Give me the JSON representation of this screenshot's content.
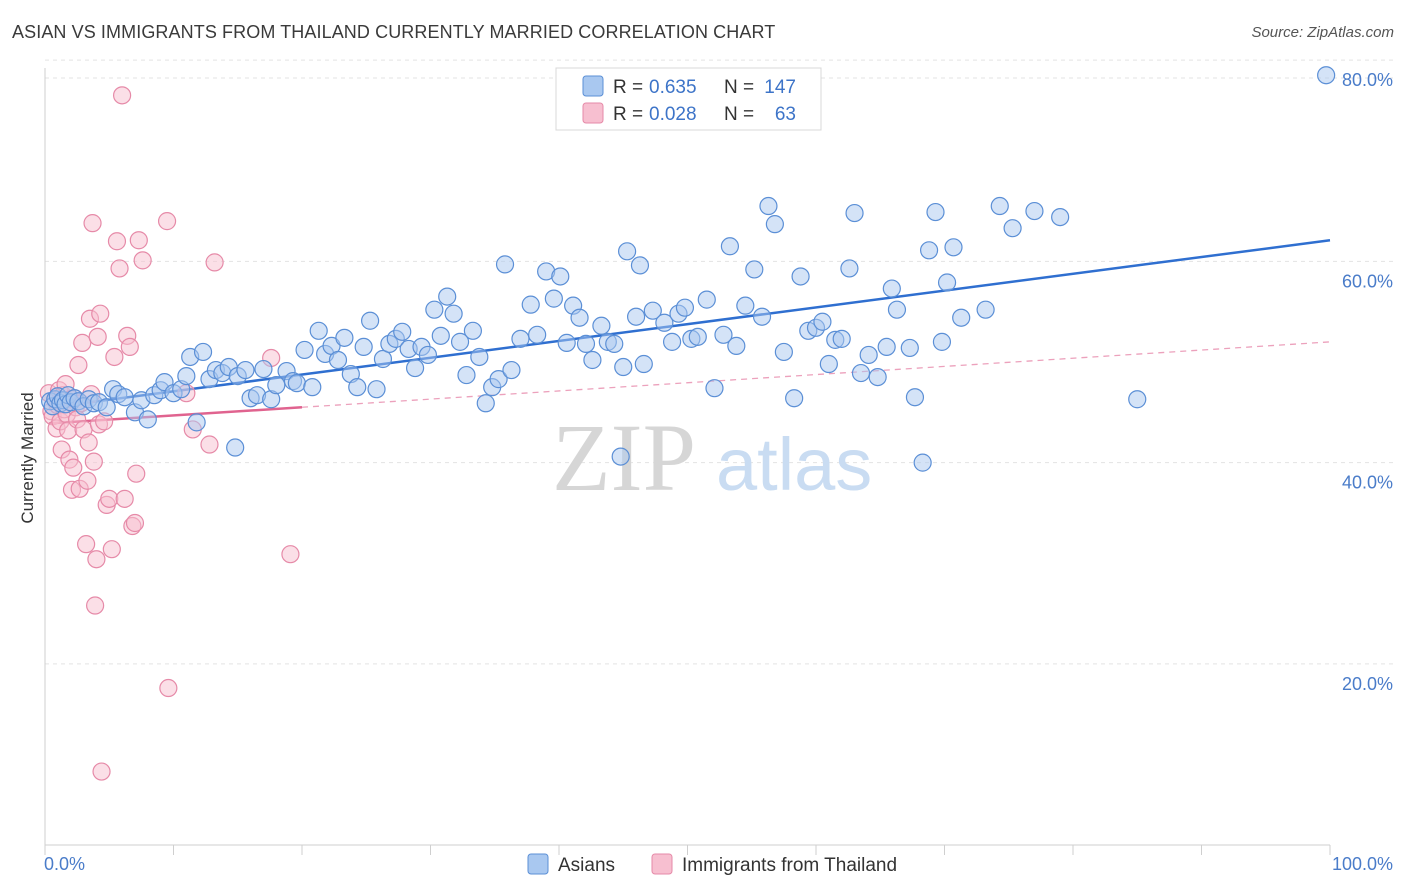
{
  "title": "ASIAN VS IMMIGRANTS FROM THAILAND CURRENTLY MARRIED CORRELATION CHART",
  "source": "Source: ZipAtlas.com",
  "watermark": {
    "zip": "ZIP",
    "atlas": "atlas"
  },
  "colors": {
    "asian_fill": "#a9c8f0",
    "asian_stroke": "#5b8fd6",
    "asian_line": "#2f6fd0",
    "thai_fill": "#f7bfd0",
    "thai_stroke": "#e68aa8",
    "thai_line": "#e0638f",
    "grid": "#e3e3e3",
    "tick_text": "#4a7cc9"
  },
  "legend_top": {
    "rows": [
      {
        "r_label": "R =",
        "r_value": "0.635",
        "n_label": "N =",
        "n_value": "147"
      },
      {
        "r_label": "R =",
        "r_value": "0.028",
        "n_label": "N =",
        "n_value": "63"
      }
    ]
  },
  "legend_bottom": {
    "items": [
      "Asians",
      "Immigrants from Thailand"
    ]
  },
  "chart_data": {
    "type": "scatter",
    "title": "ASIAN VS IMMIGRANTS FROM THAILAND CURRENTLY MARRIED CORRELATION CHART",
    "xlabel": "",
    "ylabel": "Currently Married",
    "xlim": [
      0,
      100
    ],
    "ylim": [
      2,
      82
    ],
    "x_tick_labels": [
      "0.0%",
      "100.0%"
    ],
    "y_ticks": [
      20,
      40,
      60,
      80
    ],
    "y_tick_labels": [
      "20.0%",
      "40.0%",
      "60.0%",
      "80.0%"
    ],
    "grid": true,
    "legend_position": "top-center",
    "series": [
      {
        "name": "Asians",
        "R": 0.635,
        "N": 147,
        "trend": {
          "x": [
            0.5,
            100
          ],
          "y": [
            45.5,
            62.1
          ],
          "style": "solid"
        },
        "points": [
          [
            0.4,
            46.1
          ],
          [
            0.6,
            45.6
          ],
          [
            0.8,
            46.3
          ],
          [
            1.0,
            46.6
          ],
          [
            1.2,
            45.9
          ],
          [
            1.4,
            46.2
          ],
          [
            1.6,
            45.8
          ],
          [
            1.8,
            46.7
          ],
          [
            2.0,
            46.0
          ],
          [
            2.3,
            46.4
          ],
          [
            2.6,
            46.1
          ],
          [
            3.0,
            45.6
          ],
          [
            3.4,
            46.3
          ],
          [
            3.8,
            45.9
          ],
          [
            4.2,
            46.0
          ],
          [
            4.8,
            45.5
          ],
          [
            5.3,
            47.3
          ],
          [
            5.7,
            46.8
          ],
          [
            6.2,
            46.5
          ],
          [
            7.0,
            45.0
          ],
          [
            7.5,
            46.2
          ],
          [
            8.0,
            44.3
          ],
          [
            8.5,
            46.7
          ],
          [
            9.0,
            47.2
          ],
          [
            9.3,
            48.0
          ],
          [
            10.0,
            46.9
          ],
          [
            10.6,
            47.3
          ],
          [
            11.0,
            48.6
          ],
          [
            11.3,
            50.5
          ],
          [
            11.8,
            44.0
          ],
          [
            12.3,
            51.0
          ],
          [
            12.8,
            48.3
          ],
          [
            13.3,
            49.2
          ],
          [
            13.8,
            48.9
          ],
          [
            14.3,
            49.5
          ],
          [
            14.8,
            41.5
          ],
          [
            15.0,
            48.6
          ],
          [
            15.6,
            49.2
          ],
          [
            16.0,
            46.4
          ],
          [
            16.5,
            46.7
          ],
          [
            17.0,
            49.3
          ],
          [
            17.6,
            46.3
          ],
          [
            18.0,
            47.7
          ],
          [
            18.8,
            49.1
          ],
          [
            19.3,
            48.1
          ],
          [
            19.6,
            47.9
          ],
          [
            20.2,
            51.2
          ],
          [
            20.8,
            47.5
          ],
          [
            21.3,
            53.1
          ],
          [
            21.8,
            50.8
          ],
          [
            22.3,
            51.6
          ],
          [
            22.8,
            50.2
          ],
          [
            23.3,
            52.4
          ],
          [
            23.8,
            48.8
          ],
          [
            24.3,
            47.5
          ],
          [
            24.8,
            51.5
          ],
          [
            25.3,
            54.1
          ],
          [
            25.8,
            47.3
          ],
          [
            26.3,
            50.3
          ],
          [
            26.8,
            51.8
          ],
          [
            27.3,
            52.3
          ],
          [
            27.8,
            53.0
          ],
          [
            28.3,
            51.3
          ],
          [
            28.8,
            49.4
          ],
          [
            29.3,
            51.5
          ],
          [
            29.8,
            50.7
          ],
          [
            30.3,
            55.2
          ],
          [
            30.8,
            52.6
          ],
          [
            31.3,
            56.5
          ],
          [
            31.8,
            54.8
          ],
          [
            32.3,
            52.0
          ],
          [
            32.8,
            48.7
          ],
          [
            33.3,
            53.1
          ],
          [
            33.8,
            50.5
          ],
          [
            34.3,
            45.9
          ],
          [
            34.8,
            47.5
          ],
          [
            35.3,
            48.3
          ],
          [
            35.8,
            59.7
          ],
          [
            36.3,
            49.2
          ],
          [
            37.0,
            52.3
          ],
          [
            37.8,
            55.7
          ],
          [
            38.3,
            52.7
          ],
          [
            39.0,
            59.0
          ],
          [
            39.6,
            56.3
          ],
          [
            40.1,
            58.5
          ],
          [
            40.6,
            51.9
          ],
          [
            41.1,
            55.6
          ],
          [
            41.6,
            54.4
          ],
          [
            42.1,
            51.8
          ],
          [
            42.6,
            50.2
          ],
          [
            43.3,
            53.6
          ],
          [
            43.8,
            52.0
          ],
          [
            44.3,
            51.8
          ],
          [
            44.8,
            40.6
          ],
          [
            45.0,
            49.5
          ],
          [
            45.3,
            61.0
          ],
          [
            46.0,
            54.5
          ],
          [
            46.3,
            59.6
          ],
          [
            46.6,
            49.8
          ],
          [
            47.3,
            55.1
          ],
          [
            48.2,
            53.9
          ],
          [
            48.8,
            52.0
          ],
          [
            49.3,
            54.8
          ],
          [
            49.8,
            55.4
          ],
          [
            50.3,
            52.3
          ],
          [
            50.8,
            52.5
          ],
          [
            51.5,
            56.2
          ],
          [
            52.1,
            47.4
          ],
          [
            52.8,
            52.7
          ],
          [
            53.3,
            61.5
          ],
          [
            53.8,
            51.6
          ],
          [
            54.5,
            55.6
          ],
          [
            55.2,
            59.2
          ],
          [
            55.8,
            54.5
          ],
          [
            56.3,
            65.5
          ],
          [
            56.8,
            63.7
          ],
          [
            57.5,
            51.0
          ],
          [
            58.3,
            46.4
          ],
          [
            58.8,
            58.5
          ],
          [
            59.4,
            53.1
          ],
          [
            60.0,
            53.4
          ],
          [
            60.5,
            54.0
          ],
          [
            61.0,
            49.8
          ],
          [
            61.5,
            52.2
          ],
          [
            62.0,
            52.3
          ],
          [
            62.6,
            59.3
          ],
          [
            63.0,
            64.8
          ],
          [
            63.5,
            48.9
          ],
          [
            64.1,
            50.7
          ],
          [
            64.8,
            48.5
          ],
          [
            65.5,
            51.5
          ],
          [
            65.9,
            57.3
          ],
          [
            66.3,
            55.2
          ],
          [
            67.3,
            51.4
          ],
          [
            67.7,
            46.5
          ],
          [
            68.3,
            40.0
          ],
          [
            68.8,
            61.1
          ],
          [
            69.3,
            64.9
          ],
          [
            69.8,
            52.0
          ],
          [
            70.2,
            57.9
          ],
          [
            70.7,
            61.4
          ],
          [
            71.3,
            54.4
          ],
          [
            73.2,
            55.2
          ],
          [
            74.3,
            65.5
          ],
          [
            75.3,
            63.3
          ],
          [
            77.0,
            65.0
          ],
          [
            79.0,
            64.4
          ],
          [
            85.0,
            46.3
          ],
          [
            99.7,
            78.5
          ]
        ]
      },
      {
        "name": "Immigrants from Thailand",
        "R": 0.028,
        "N": 63,
        "trend": {
          "x": [
            0.3,
            20
          ],
          "y": [
            43.9,
            45.5
          ],
          "style": "solid",
          "extended": {
            "x": [
              20,
              100
            ],
            "y": [
              45.5,
              52.0
            ],
            "style": "dashed"
          }
        },
        "points": [
          [
            0.3,
            46.9
          ],
          [
            0.5,
            45.1
          ],
          [
            0.6,
            44.6
          ],
          [
            0.8,
            46.2
          ],
          [
            0.9,
            43.4
          ],
          [
            1.0,
            45.7
          ],
          [
            1.1,
            47.2
          ],
          [
            1.2,
            44.1
          ],
          [
            1.3,
            41.3
          ],
          [
            1.4,
            46.7
          ],
          [
            1.5,
            45.3
          ],
          [
            1.6,
            47.8
          ],
          [
            1.7,
            44.8
          ],
          [
            1.8,
            43.2
          ],
          [
            1.9,
            40.3
          ],
          [
            2.0,
            46.3
          ],
          [
            2.1,
            37.3
          ],
          [
            2.2,
            39.5
          ],
          [
            2.3,
            46.4
          ],
          [
            2.4,
            45.5
          ],
          [
            2.5,
            44.3
          ],
          [
            2.6,
            49.7
          ],
          [
            2.7,
            37.4
          ],
          [
            2.8,
            45.9
          ],
          [
            2.9,
            51.9
          ],
          [
            3.0,
            43.3
          ],
          [
            3.2,
            31.9
          ],
          [
            3.3,
            38.2
          ],
          [
            3.4,
            42.0
          ],
          [
            3.5,
            54.3
          ],
          [
            3.6,
            46.8
          ],
          [
            3.7,
            63.8
          ],
          [
            3.8,
            40.1
          ],
          [
            3.9,
            25.8
          ],
          [
            4.0,
            30.4
          ],
          [
            4.1,
            52.5
          ],
          [
            4.2,
            43.8
          ],
          [
            4.3,
            54.8
          ],
          [
            4.4,
            9.3
          ],
          [
            4.6,
            44.1
          ],
          [
            4.8,
            35.8
          ],
          [
            5.0,
            36.4
          ],
          [
            5.2,
            31.4
          ],
          [
            5.4,
            50.5
          ],
          [
            5.6,
            62.0
          ],
          [
            5.8,
            59.3
          ],
          [
            6.0,
            76.5
          ],
          [
            6.2,
            36.4
          ],
          [
            6.4,
            52.6
          ],
          [
            6.6,
            51.5
          ],
          [
            6.8,
            33.7
          ],
          [
            7.0,
            34.0
          ],
          [
            7.1,
            38.9
          ],
          [
            7.3,
            62.1
          ],
          [
            7.6,
            60.1
          ],
          [
            9.5,
            64.0
          ],
          [
            9.6,
            17.6
          ],
          [
            11.0,
            46.9
          ],
          [
            11.5,
            43.3
          ],
          [
            12.8,
            41.8
          ],
          [
            13.2,
            59.9
          ],
          [
            17.6,
            50.4
          ],
          [
            19.1,
            30.9
          ]
        ]
      }
    ]
  }
}
